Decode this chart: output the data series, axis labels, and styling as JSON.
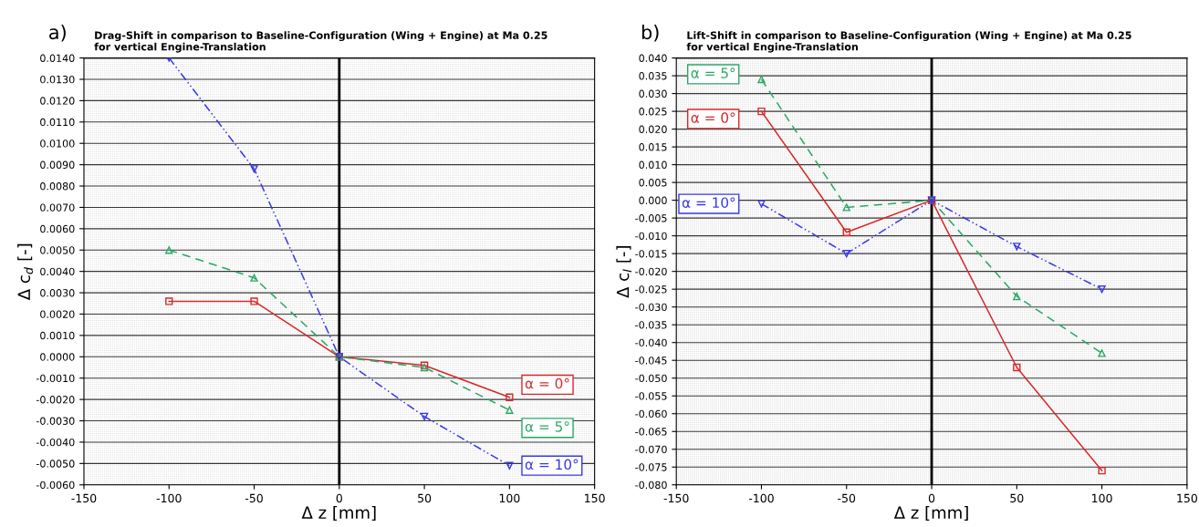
{
  "chart_data": [
    {
      "type": "line",
      "title": "Drag-Shift in comparison to Baseline-Configuration (Wing + Engine) at Ma 0.25\nfor vertical Engine-Translation",
      "xlabel": "Δ z [mm]",
      "ylabel": "Δ c$_{d}$ [-]",
      "annotations": [
        "a)"
      ],
      "x": [
        -100,
        -50,
        0,
        50,
        100
      ],
      "series": [
        {
          "name": "α = 0°",
          "color": "#d42a2a",
          "marker": "square",
          "line_style": "solid",
          "values": [
            0.0026,
            0.0026,
            0.0,
            -0.0004,
            -0.0019
          ]
        },
        {
          "name": "α = 5°",
          "color": "#2aa866",
          "marker": "triangle",
          "line_style": "dashed",
          "values": [
            0.005,
            0.0037,
            0.0,
            -0.0005,
            -0.0025
          ]
        },
        {
          "name": "α = 10°",
          "color": "#3a3ae0",
          "marker": "triangle_down",
          "line_style": "dashdot",
          "values": [
            0.014,
            0.0088,
            0.0,
            -0.0028,
            -0.0051
          ]
        }
      ],
      "xlim": [
        -150,
        150
      ],
      "xticks": [
        -150,
        -100,
        -50,
        0,
        50,
        100,
        150
      ],
      "ylim": [
        -0.006,
        0.014
      ],
      "yticks": [
        {
          "value": -0.006,
          "label": "-0.0060"
        },
        {
          "value": -0.005,
          "label": "-0.0050"
        },
        {
          "value": -0.004,
          "label": "-0.0040"
        },
        {
          "value": -0.003,
          "label": "-0.0030"
        },
        {
          "value": -0.002,
          "label": "-0.0020"
        },
        {
          "value": -0.001,
          "label": "-0.0010"
        },
        {
          "value": 0,
          "label": "0.0000"
        },
        {
          "value": 0.001,
          "label": "0.0010"
        },
        {
          "value": 0.002,
          "label": "0.0020"
        },
        {
          "value": 0.003,
          "label": "0.0030"
        },
        {
          "value": 0.004,
          "label": "0.0040"
        },
        {
          "value": 0.005,
          "label": "0.0050"
        },
        {
          "value": 0.006,
          "label": "0.0060"
        },
        {
          "value": 0.007,
          "label": "0.0070"
        },
        {
          "value": 0.008,
          "label": "0.0080"
        },
        {
          "value": 0.009,
          "label": "0.0090"
        },
        {
          "value": 0.01,
          "label": "0.0100"
        },
        {
          "value": 0.011,
          "label": "0.0110"
        },
        {
          "value": 0.012,
          "label": "0.0120"
        },
        {
          "value": 0.013,
          "label": "0.0130"
        },
        {
          "value": 0.014,
          "label": "0.0140"
        }
      ],
      "grid": "y",
      "ref_lines": [
        {
          "axis": "x",
          "value": 0,
          "color": "#000000"
        }
      ]
    },
    {
      "type": "line",
      "title": "Lift-Shift in comparison to Baseline-Configuration (Wing + Engine) at Ma 0.25\nfor vertical Engine-Translation",
      "xlabel": "Δ z [mm]",
      "ylabel": "Δ c$_{l}$ [-]",
      "annotations": [
        "b)"
      ],
      "x": [
        -100,
        -50,
        0,
        50,
        100
      ],
      "series": [
        {
          "name": "α = 5°",
          "color": "#2aa866",
          "marker": "triangle",
          "line_style": "dashed",
          "values": [
            0.034,
            -0.002,
            0.0,
            -0.027,
            -0.043
          ]
        },
        {
          "name": "α = 0°",
          "color": "#d42a2a",
          "marker": "square",
          "line_style": "solid",
          "values": [
            0.025,
            -0.009,
            0.0,
            -0.047,
            -0.076
          ]
        },
        {
          "name": "α = 10°",
          "color": "#3a3ae0",
          "marker": "triangle_down",
          "line_style": "dashdot",
          "values": [
            -0.001,
            -0.015,
            0.0,
            -0.013,
            -0.025
          ]
        }
      ],
      "xlim": [
        -150,
        150
      ],
      "xticks": [
        -150,
        -100,
        -50,
        0,
        50,
        100,
        150
      ],
      "ylim": [
        -0.08,
        0.04
      ],
      "yticks": [
        {
          "value": -0.08,
          "label": "-0.080"
        },
        {
          "value": -0.075,
          "label": "-0.075"
        },
        {
          "value": -0.07,
          "label": "-0.070"
        },
        {
          "value": -0.065,
          "label": "-0.065"
        },
        {
          "value": -0.06,
          "label": "-0.060"
        },
        {
          "value": -0.055,
          "label": "-0.055"
        },
        {
          "value": -0.05,
          "label": "-0.050"
        },
        {
          "value": -0.045,
          "label": "-0.045"
        },
        {
          "value": -0.04,
          "label": "-0.040"
        },
        {
          "value": -0.035,
          "label": "-0.035"
        },
        {
          "value": -0.03,
          "label": "-0.030"
        },
        {
          "value": -0.025,
          "label": "-0.025"
        },
        {
          "value": -0.02,
          "label": "-0.020"
        },
        {
          "value": -0.015,
          "label": "-0.015"
        },
        {
          "value": -0.01,
          "label": "-0.010"
        },
        {
          "value": -0.005,
          "label": "-0.005"
        },
        {
          "value": 0,
          "label": "0.000"
        },
        {
          "value": 0.005,
          "label": "0.005"
        },
        {
          "value": 0.01,
          "label": "0.010"
        },
        {
          "value": 0.015,
          "label": "0.015"
        },
        {
          "value": 0.02,
          "label": "0.020"
        },
        {
          "value": 0.025,
          "label": "0.025"
        },
        {
          "value": 0.03,
          "label": "0.030"
        },
        {
          "value": 0.035,
          "label": "0.035"
        },
        {
          "value": 0.04,
          "label": "0.040"
        }
      ],
      "grid": "y",
      "ref_lines": [
        {
          "axis": "x",
          "value": 0,
          "color": "#000000"
        }
      ]
    }
  ]
}
